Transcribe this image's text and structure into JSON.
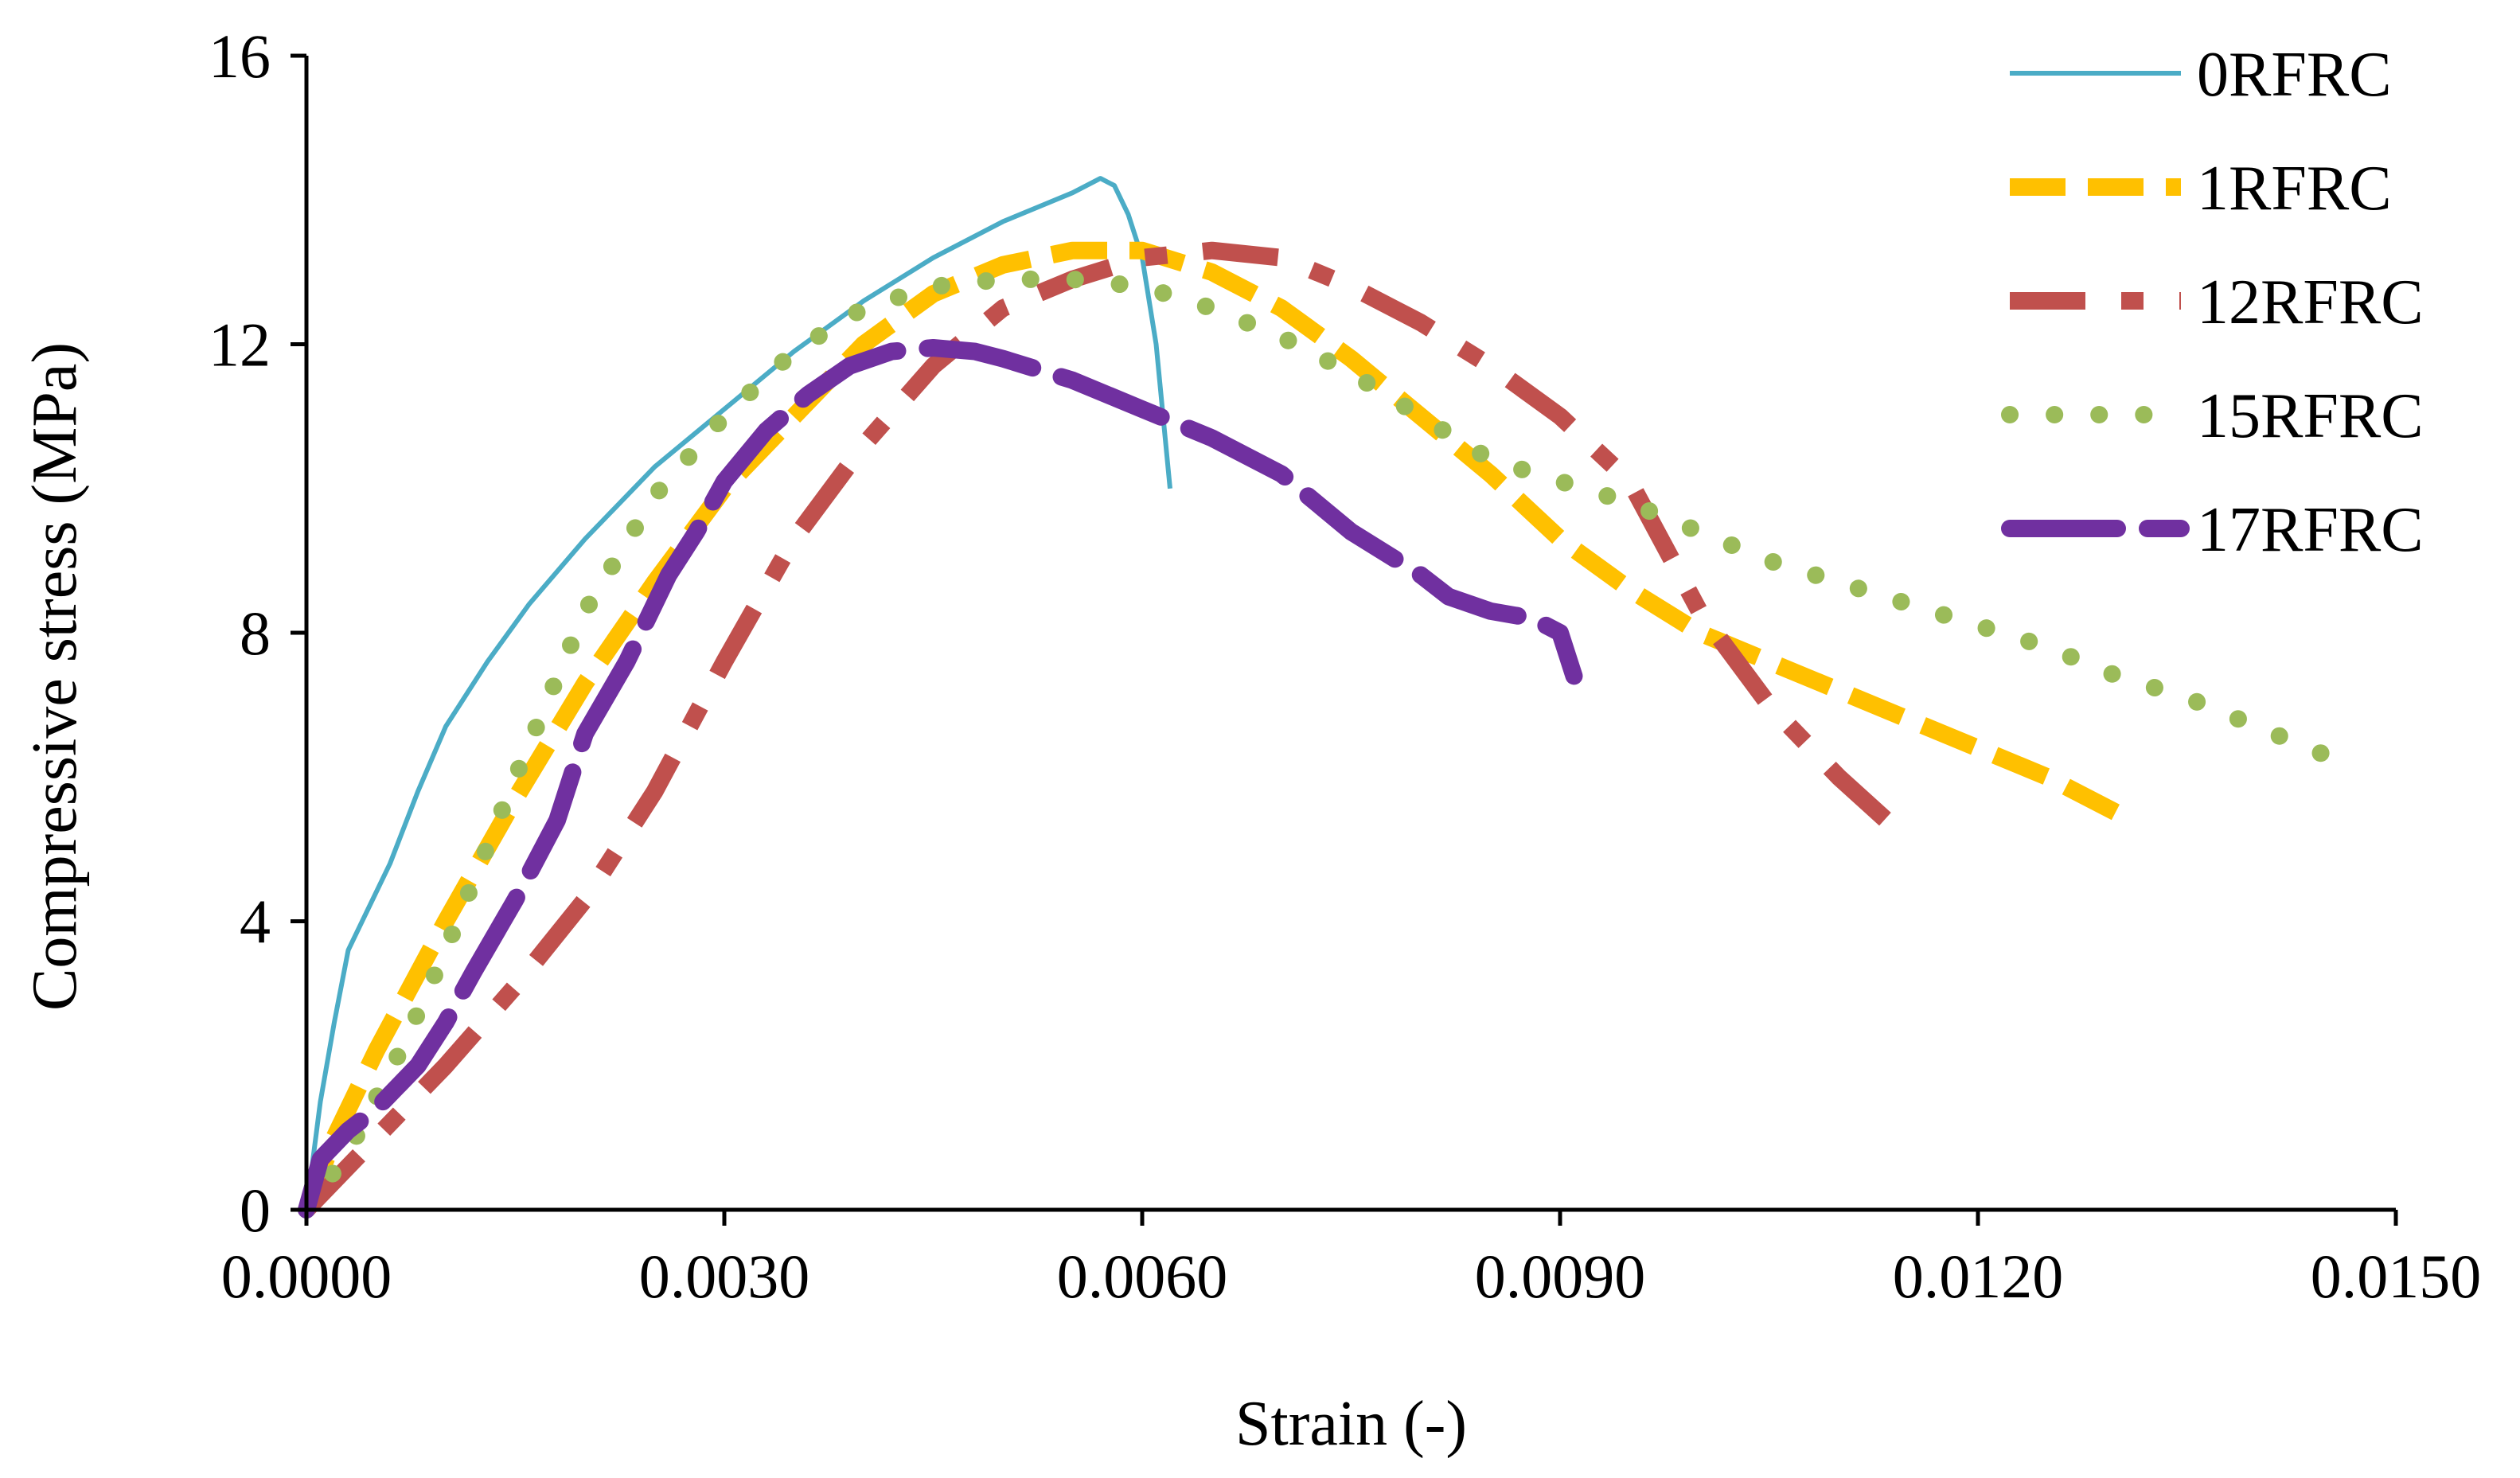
{
  "chart_data": {
    "type": "line",
    "title": "",
    "xlabel": "Strain (-)",
    "ylabel": "Compressive stress (MPa)",
    "xlim": [
      0,
      0.015
    ],
    "ylim": [
      0,
      16
    ],
    "x_ticks": [
      0,
      0.003,
      0.006,
      0.009,
      0.012,
      0.015
    ],
    "x_tick_labels": [
      "0.0000",
      "0.0030",
      "0.0060",
      "0.0090",
      "0.0120",
      "0.0150"
    ],
    "y_ticks": [
      0,
      4,
      8,
      12,
      16
    ],
    "y_tick_labels": [
      "0",
      "4",
      "8",
      "12",
      "16"
    ],
    "grid": false,
    "legend_position": "top-right",
    "series": [
      {
        "name": "0RFRC",
        "color": "#4BACC6",
        "style": "solid",
        "x": [
          0,
          0.0001,
          0.0002,
          0.0003,
          0.0004,
          0.0006,
          0.0008,
          0.001,
          0.0013,
          0.0016,
          0.002,
          0.0025,
          0.003,
          0.0035,
          0.004,
          0.0045,
          0.005,
          0.0055,
          0.0057,
          0.0058,
          0.0059,
          0.006,
          0.0061,
          0.0062
        ],
        "y": [
          0,
          1.5,
          2.6,
          3.6,
          4.0,
          4.8,
          5.8,
          6.7,
          7.6,
          8.4,
          9.3,
          10.3,
          11.1,
          11.9,
          12.6,
          13.2,
          13.7,
          14.1,
          14.3,
          14.2,
          13.8,
          13.2,
          12.0,
          10.0
        ]
      },
      {
        "name": "1RFRC",
        "color": "#FFC000",
        "style": "dash",
        "x": [
          0,
          0.0002,
          0.0005,
          0.001,
          0.0015,
          0.002,
          0.0025,
          0.003,
          0.0035,
          0.004,
          0.0045,
          0.005,
          0.0055,
          0.006,
          0.0065,
          0.007,
          0.0075,
          0.008,
          0.0085,
          0.009,
          0.0095,
          0.01,
          0.0105,
          0.011,
          0.0115,
          0.012,
          0.0125,
          0.013
        ],
        "y": [
          0,
          1.0,
          2.2,
          4.0,
          5.7,
          7.3,
          8.7,
          10.0,
          11.0,
          12.0,
          12.7,
          13.1,
          13.3,
          13.3,
          13.0,
          12.5,
          11.8,
          11.0,
          10.2,
          9.3,
          8.6,
          8.0,
          7.6,
          7.2,
          6.8,
          6.4,
          6.0,
          5.5
        ]
      },
      {
        "name": "12RFRC",
        "color": "#C0504D",
        "style": "dashdot",
        "x": [
          0,
          0.0005,
          0.001,
          0.0015,
          0.002,
          0.0025,
          0.003,
          0.0035,
          0.004,
          0.0045,
          0.005,
          0.0055,
          0.006,
          0.0065,
          0.007,
          0.0075,
          0.008,
          0.0085,
          0.009,
          0.0095,
          0.01,
          0.0105,
          0.011,
          0.0114
        ],
        "y": [
          0,
          1.0,
          2.0,
          3.1,
          4.3,
          5.8,
          7.6,
          9.3,
          10.6,
          11.7,
          12.5,
          12.9,
          13.2,
          13.3,
          13.2,
          12.8,
          12.3,
          11.7,
          11.0,
          10.1,
          8.3,
          7.0,
          6.0,
          5.3
        ]
      },
      {
        "name": "15RFRC",
        "color": "#9BBB59",
        "style": "dot",
        "x": [
          0,
          0.0003,
          0.0007,
          0.001,
          0.0015,
          0.002,
          0.0025,
          0.003,
          0.0035,
          0.004,
          0.0045,
          0.005,
          0.0055,
          0.006,
          0.0065,
          0.007,
          0.0075,
          0.008,
          0.0085,
          0.009,
          0.0095,
          0.01,
          0.0105,
          0.011,
          0.0115,
          0.012,
          0.0125,
          0.013,
          0.0135,
          0.014,
          0.0145
        ],
        "y": [
          0,
          0.8,
          2.3,
          3.6,
          6.0,
          8.3,
          9.9,
          11.0,
          11.9,
          12.5,
          12.8,
          12.9,
          12.9,
          12.8,
          12.5,
          12.1,
          11.6,
          11.0,
          10.4,
          10.1,
          9.8,
          9.4,
          9.0,
          8.7,
          8.4,
          8.1,
          7.8,
          7.4,
          7.1,
          6.7,
          6.3
        ]
      },
      {
        "name": "17RFRC",
        "color": "#7030A0",
        "style": "longdash",
        "x": [
          0,
          0.0001,
          0.0003,
          0.0005,
          0.0008,
          0.001,
          0.0012,
          0.0015,
          0.0018,
          0.002,
          0.0023,
          0.0026,
          0.0028,
          0.003,
          0.0033,
          0.0036,
          0.0039,
          0.0042,
          0.0045,
          0.0048,
          0.005,
          0.0055,
          0.006,
          0.0065,
          0.007,
          0.0075,
          0.008,
          0.0082,
          0.0085,
          0.0088,
          0.009,
          0.0091
        ],
        "y": [
          0,
          0.7,
          1.1,
          1.4,
          2.0,
          2.6,
          3.3,
          4.3,
          5.4,
          6.6,
          7.6,
          8.8,
          9.4,
          10.1,
          10.8,
          11.3,
          11.7,
          11.9,
          11.95,
          11.9,
          11.8,
          11.5,
          11.1,
          10.7,
          10.2,
          9.4,
          8.8,
          8.5,
          8.3,
          8.2,
          8.0,
          7.4
        ]
      }
    ]
  }
}
